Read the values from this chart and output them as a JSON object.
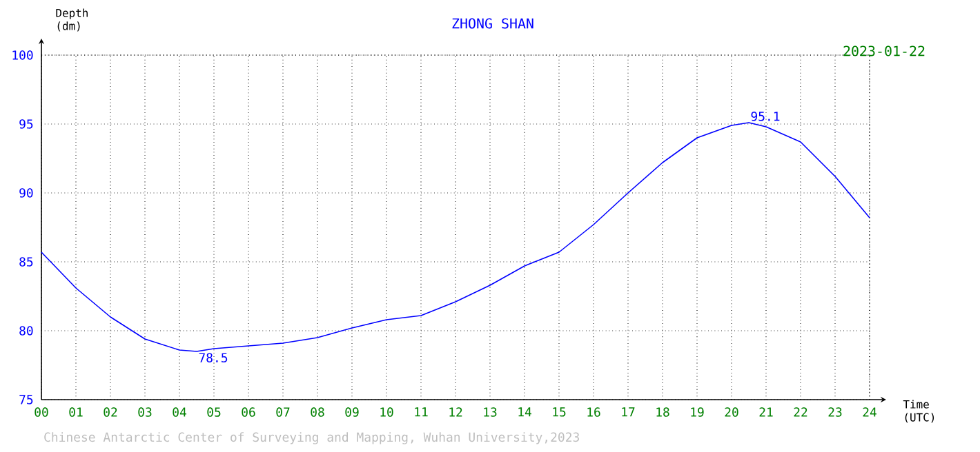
{
  "chart_data": {
    "type": "line",
    "title": "ZHONG SHAN",
    "subtitle": "2023-01-22",
    "xlabel": "Time (UTC)",
    "ylabel": "Depth (dm)",
    "x": [
      0,
      1,
      2,
      3,
      4,
      4.5,
      5,
      6,
      7,
      8,
      9,
      10,
      11,
      12,
      13,
      14,
      15,
      16,
      17,
      18,
      19,
      20,
      20.5,
      21,
      22,
      23,
      24
    ],
    "series": [
      {
        "color": "#0000ff",
        "values": [
          85.7,
          83.1,
          81.0,
          79.4,
          78.6,
          78.5,
          78.7,
          78.9,
          79.1,
          79.5,
          80.2,
          80.8,
          81.1,
          82.1,
          83.3,
          84.7,
          85.7,
          87.7,
          90.0,
          92.2,
          94.0,
          94.9,
          95.1,
          94.8,
          93.7,
          91.2,
          88.2
        ]
      }
    ],
    "xlim": [
      0,
      24
    ],
    "ylim": [
      75,
      100
    ],
    "xticks": [
      {
        "value": 0,
        "label": "00"
      },
      {
        "value": 1,
        "label": "01"
      },
      {
        "value": 2,
        "label": "02"
      },
      {
        "value": 3,
        "label": "03"
      },
      {
        "value": 4,
        "label": "04"
      },
      {
        "value": 5,
        "label": "05"
      },
      {
        "value": 6,
        "label": "06"
      },
      {
        "value": 7,
        "label": "07"
      },
      {
        "value": 8,
        "label": "08"
      },
      {
        "value": 9,
        "label": "09"
      },
      10,
      11,
      12,
      13,
      14,
      15,
      16,
      17,
      18,
      19,
      20,
      21,
      22,
      23,
      24
    ],
    "yticks": [
      75,
      80,
      85,
      90,
      95,
      100
    ],
    "annotations": [
      {
        "text": "78.5",
        "x": 4.5,
        "y": 78.5
      },
      {
        "text": "95.1",
        "x": 20.5,
        "y": 95.1
      },
      "Chinese Antarctic Center of Surveying and Mapping, Wuhan University,2023"
    ],
    "grid": true,
    "marker": "none",
    "line_style": "solid"
  }
}
